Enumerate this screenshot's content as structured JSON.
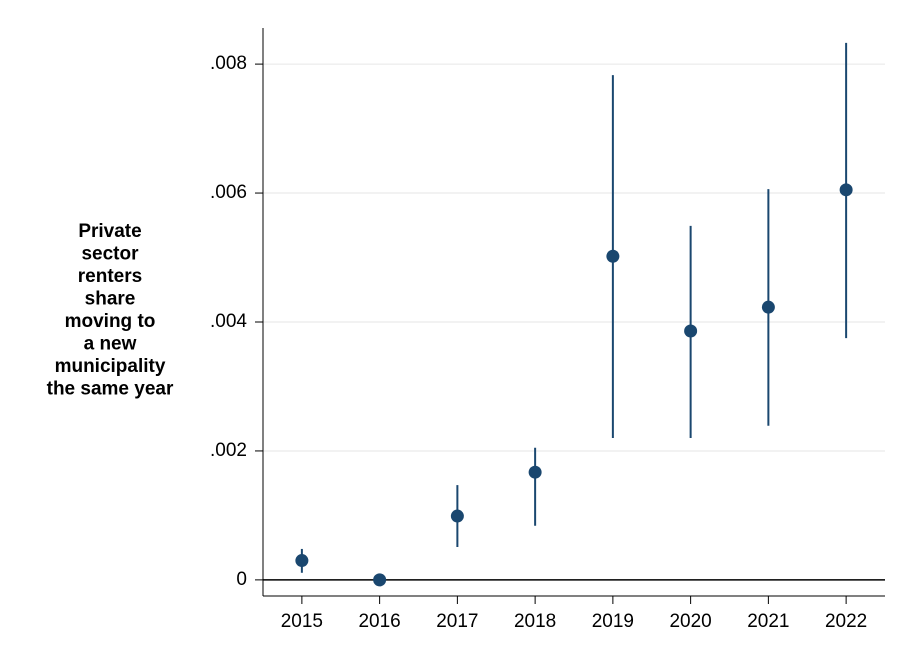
{
  "chart_data": {
    "type": "errorbar",
    "ylabel": [
      "Private",
      "sector",
      "renters",
      "share",
      "moving to",
      "a new",
      "municipality",
      "the same year"
    ],
    "categories": [
      "2015",
      "2016",
      "2017",
      "2018",
      "2019",
      "2020",
      "2021",
      "2022"
    ],
    "series": [
      {
        "color": "#1a476f",
        "values": [
          0.0003,
          0,
          0.00099,
          0.00167,
          0.00502,
          0.00386,
          0.00423,
          0.00605
        ],
        "lower": [
          0.00011,
          0,
          0.00051,
          0.00084,
          0.0022,
          0.0022,
          0.00239,
          0.00375
        ],
        "upper": [
          0.00048,
          0,
          0.00147,
          0.00205,
          0.00783,
          0.00549,
          0.00606,
          0.00833
        ]
      }
    ],
    "ylim": [
      -0.00025,
      0.00856
    ],
    "yticks": [
      0,
      {
        "value": 0.002,
        "label": ".002"
      },
      {
        "value": 0.004,
        "label": ".004"
      },
      {
        "value": 0.006,
        "label": ".006"
      },
      {
        "value": 0.008,
        "label": ".008"
      }
    ],
    "grid": true,
    "reference_line": 0
  }
}
